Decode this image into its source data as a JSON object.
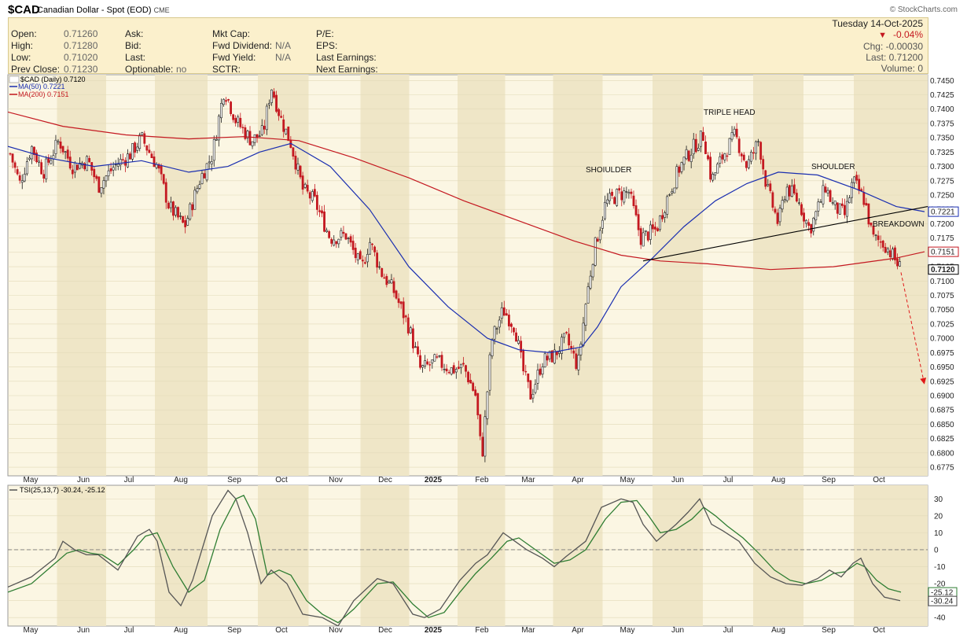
{
  "header": {
    "symbol": "$CAD",
    "name": "Canadian Dollar - Spot (EOD)",
    "exchange": "CME",
    "source": "© StockCharts.com"
  },
  "info": {
    "rows": [
      [
        {
          "label": "Open:",
          "value": "0.71260"
        },
        {
          "label": "Ask:",
          "value": ""
        },
        {
          "label": "Mkt Cap:",
          "value": ""
        },
        {
          "label": "P/E:",
          "value": ""
        }
      ],
      [
        {
          "label": "High:",
          "value": "0.71280"
        },
        {
          "label": "Bid:",
          "value": ""
        },
        {
          "label": "Fwd Dividend:",
          "value": "N/A"
        },
        {
          "label": "EPS:",
          "value": ""
        }
      ],
      [
        {
          "label": "Low:",
          "value": "0.71020"
        },
        {
          "label": "Last:",
          "value": ""
        },
        {
          "label": "Fwd Yield:",
          "value": "N/A"
        },
        {
          "label": "Last Earnings:",
          "value": ""
        }
      ],
      [
        {
          "label": "Prev Close:",
          "value": "0.71230"
        },
        {
          "label": "Optionable:",
          "value": "no"
        },
        {
          "label": "SCTR:",
          "value": ""
        },
        {
          "label": "Next Earnings:",
          "value": ""
        }
      ]
    ],
    "date": "Tuesday 14-Oct-2025",
    "pct_change": "-0.04%",
    "chg": "Chg: -0.00030",
    "last": "Last: 0.71200",
    "volume": "Volume: 0"
  },
  "chart_data": [
    {
      "type": "candlestick",
      "legend": [
        "$CAD (Daily) 0.7120",
        "MA(50) 0.7221",
        "MA(200) 0.7151"
      ],
      "ylim": [
        0.676,
        0.746
      ],
      "y_ticks": [
        "0.7450",
        "0.7425",
        "0.7400",
        "0.7375",
        "0.7350",
        "0.7325",
        "0.7300",
        "0.7275",
        "0.7250",
        "0.7225",
        "0.7200",
        "0.7175",
        "0.7150",
        "0.7125",
        "0.7100",
        "0.7075",
        "0.7050",
        "0.7025",
        "0.7000",
        "0.6975",
        "0.6950",
        "0.6925",
        "0.6900",
        "0.6875",
        "0.6850",
        "0.6825",
        "0.6800",
        "0.6775"
      ],
      "x_ticks": [
        "May",
        "Jun",
        "Jul",
        "Aug",
        "Sep",
        "Oct",
        "Nov",
        "Dec",
        "2025",
        "Feb",
        "Mar",
        "Apr",
        "May",
        "Jun",
        "Jul",
        "Aug",
        "Sep",
        "Oct"
      ],
      "last_labels": [
        {
          "value": "0.7221",
          "color": "#1a2eb0"
        },
        {
          "value": "0.7151",
          "color": "#c41820"
        },
        {
          "value": "0.7120",
          "color": "#000000"
        }
      ],
      "price_path": [
        [
          0,
          0.7265
        ],
        [
          10,
          0.7335
        ],
        [
          25,
          0.727
        ],
        [
          40,
          0.7335
        ],
        [
          55,
          0.729
        ],
        [
          75,
          0.7345
        ],
        [
          92,
          0.73
        ],
        [
          112,
          0.731
        ],
        [
          125,
          0.7265
        ],
        [
          145,
          0.73
        ],
        [
          165,
          0.732
        ],
        [
          180,
          0.735
        ],
        [
          200,
          0.73
        ],
        [
          215,
          0.723
        ],
        [
          235,
          0.7195
        ],
        [
          255,
          0.728
        ],
        [
          270,
          0.732
        ],
        [
          285,
          0.7435
        ],
        [
          300,
          0.738
        ],
        [
          320,
          0.7345
        ],
        [
          335,
          0.736
        ],
        [
          345,
          0.744
        ],
        [
          358,
          0.738
        ],
        [
          370,
          0.734
        ],
        [
          385,
          0.726
        ],
        [
          400,
          0.724
        ],
        [
          420,
          0.7175
        ],
        [
          440,
          0.718
        ],
        [
          460,
          0.712
        ],
        [
          470,
          0.717
        ],
        [
          485,
          0.7115
        ],
        [
          500,
          0.7085
        ],
        [
          520,
          0.702
        ],
        [
          535,
          0.6945
        ],
        [
          555,
          0.696
        ],
        [
          575,
          0.6945
        ],
        [
          590,
          0.695
        ],
        [
          605,
          0.69
        ],
        [
          613,
          0.679
        ],
        [
          625,
          0.6995
        ],
        [
          640,
          0.705
        ],
        [
          655,
          0.702
        ],
        [
          665,
          0.6945
        ],
        [
          675,
          0.69
        ],
        [
          690,
          0.696
        ],
        [
          705,
          0.697
        ],
        [
          720,
          0.7
        ],
        [
          735,
          0.695
        ],
        [
          745,
          0.706
        ],
        [
          755,
          0.715
        ],
        [
          770,
          0.7235
        ],
        [
          785,
          0.725
        ],
        [
          800,
          0.7255
        ],
        [
          815,
          0.7175
        ],
        [
          835,
          0.719
        ],
        [
          850,
          0.725
        ],
        [
          865,
          0.73
        ],
        [
          880,
          0.733
        ],
        [
          895,
          0.7355
        ],
        [
          905,
          0.7275
        ],
        [
          920,
          0.732
        ],
        [
          935,
          0.7355
        ],
        [
          950,
          0.73
        ],
        [
          965,
          0.7345
        ],
        [
          975,
          0.7265
        ],
        [
          990,
          0.72
        ],
        [
          1000,
          0.7265
        ],
        [
          1015,
          0.724
        ],
        [
          1030,
          0.719
        ],
        [
          1040,
          0.7225
        ],
        [
          1050,
          0.7265
        ],
        [
          1060,
          0.723
        ],
        [
          1075,
          0.7215
        ],
        [
          1085,
          0.7275
        ],
        [
          1100,
          0.724
        ],
        [
          1110,
          0.7175
        ],
        [
          1125,
          0.7165
        ],
        [
          1135,
          0.7145
        ],
        [
          1146,
          0.712
        ]
      ],
      "ma50_path": [
        [
          10,
          0.7335
        ],
        [
          60,
          0.7315
        ],
        [
          120,
          0.73
        ],
        [
          180,
          0.731
        ],
        [
          240,
          0.729
        ],
        [
          290,
          0.73
        ],
        [
          330,
          0.7325
        ],
        [
          370,
          0.734
        ],
        [
          420,
          0.73
        ],
        [
          470,
          0.7225
        ],
        [
          520,
          0.7125
        ],
        [
          570,
          0.7055
        ],
        [
          620,
          0.7
        ],
        [
          660,
          0.698
        ],
        [
          700,
          0.6975
        ],
        [
          740,
          0.6985
        ],
        [
          760,
          0.702
        ],
        [
          790,
          0.709
        ],
        [
          830,
          0.714
        ],
        [
          870,
          0.7195
        ],
        [
          910,
          0.724
        ],
        [
          950,
          0.727
        ],
        [
          990,
          0.729
        ],
        [
          1040,
          0.7285
        ],
        [
          1090,
          0.726
        ],
        [
          1140,
          0.723
        ],
        [
          1176,
          0.7221
        ]
      ],
      "ma200_path": [
        [
          10,
          0.7395
        ],
        [
          80,
          0.737
        ],
        [
          160,
          0.7355
        ],
        [
          240,
          0.7348
        ],
        [
          310,
          0.7352
        ],
        [
          380,
          0.7345
        ],
        [
          450,
          0.7315
        ],
        [
          520,
          0.728
        ],
        [
          590,
          0.724
        ],
        [
          660,
          0.7205
        ],
        [
          730,
          0.717
        ],
        [
          790,
          0.7145
        ],
        [
          840,
          0.7135
        ],
        [
          900,
          0.713
        ],
        [
          980,
          0.712
        ],
        [
          1060,
          0.7125
        ],
        [
          1140,
          0.714
        ],
        [
          1176,
          0.7151
        ]
      ],
      "annotations": [
        {
          "text": "SHOIULDER",
          "x": 745,
          "y": 0.729
        },
        {
          "text": "TRIPLE HEAD",
          "x": 895,
          "y": 0.739
        },
        {
          "text": "SHOULDER",
          "x": 1032,
          "y": 0.7295
        },
        {
          "text": "BREAKDOWN",
          "x": 1110,
          "y": 0.7195
        }
      ],
      "neckline": [
        [
          818,
          0.7135
        ],
        [
          1180,
          0.723
        ]
      ],
      "projection": [
        [
          1146,
          0.7115
        ],
        [
          1175,
          0.6925
        ]
      ]
    },
    {
      "type": "line",
      "legend": [
        "TSI(25,13,7) -30.24, -25.12"
      ],
      "ylim": [
        -45,
        38
      ],
      "y_ticks": [
        30,
        20,
        10,
        0,
        -10,
        -20,
        -30,
        -40
      ],
      "zero_line": 0,
      "last_labels": [
        {
          "value": "-25.12",
          "color": "#2e7d32"
        },
        {
          "value": "-30.24",
          "color": "#444444"
        }
      ],
      "tsi_path": [
        [
          10,
          -22
        ],
        [
          40,
          -16
        ],
        [
          70,
          -5
        ],
        [
          80,
          5
        ],
        [
          95,
          0
        ],
        [
          110,
          -3
        ],
        [
          125,
          -3
        ],
        [
          150,
          -12
        ],
        [
          175,
          8
        ],
        [
          190,
          12
        ],
        [
          200,
          5
        ],
        [
          215,
          -25
        ],
        [
          230,
          -33
        ],
        [
          245,
          -18
        ],
        [
          270,
          20
        ],
        [
          290,
          35
        ],
        [
          300,
          30
        ],
        [
          315,
          10
        ],
        [
          332,
          -20
        ],
        [
          345,
          -12
        ],
        [
          365,
          -20
        ],
        [
          385,
          -38
        ],
        [
          410,
          -40
        ],
        [
          430,
          -45
        ],
        [
          450,
          -30
        ],
        [
          480,
          -17
        ],
        [
          500,
          -20
        ],
        [
          525,
          -38
        ],
        [
          540,
          -40
        ],
        [
          560,
          -35
        ],
        [
          585,
          -18
        ],
        [
          605,
          -8
        ],
        [
          620,
          -3
        ],
        [
          640,
          10
        ],
        [
          655,
          5
        ],
        [
          670,
          0
        ],
        [
          690,
          -5
        ],
        [
          705,
          -10
        ],
        [
          720,
          -4
        ],
        [
          745,
          5
        ],
        [
          765,
          25
        ],
        [
          790,
          30
        ],
        [
          805,
          28
        ],
        [
          818,
          15
        ],
        [
          835,
          5
        ],
        [
          860,
          15
        ],
        [
          875,
          22
        ],
        [
          890,
          30
        ],
        [
          905,
          15
        ],
        [
          920,
          11
        ],
        [
          940,
          5
        ],
        [
          960,
          -8
        ],
        [
          980,
          -16
        ],
        [
          1000,
          -20
        ],
        [
          1020,
          -21
        ],
        [
          1040,
          -17
        ],
        [
          1055,
          -12
        ],
        [
          1070,
          -16
        ],
        [
          1085,
          -8
        ],
        [
          1095,
          -5
        ],
        [
          1110,
          -20
        ],
        [
          1125,
          -28
        ],
        [
          1145,
          -30
        ]
      ],
      "signal_path": [
        [
          10,
          -25
        ],
        [
          40,
          -20
        ],
        [
          70,
          -8
        ],
        [
          85,
          -2
        ],
        [
          100,
          0
        ],
        [
          115,
          -2
        ],
        [
          130,
          -3
        ],
        [
          150,
          -9
        ],
        [
          170,
          0
        ],
        [
          185,
          8
        ],
        [
          200,
          10
        ],
        [
          220,
          -10
        ],
        [
          240,
          -25
        ],
        [
          260,
          -18
        ],
        [
          280,
          12
        ],
        [
          300,
          30
        ],
        [
          310,
          32
        ],
        [
          325,
          18
        ],
        [
          340,
          -15
        ],
        [
          355,
          -12
        ],
        [
          370,
          -15
        ],
        [
          390,
          -30
        ],
        [
          410,
          -38
        ],
        [
          430,
          -43
        ],
        [
          450,
          -35
        ],
        [
          480,
          -20
        ],
        [
          500,
          -19
        ],
        [
          525,
          -32
        ],
        [
          545,
          -40
        ],
        [
          565,
          -37
        ],
        [
          585,
          -25
        ],
        [
          605,
          -14
        ],
        [
          625,
          -5
        ],
        [
          645,
          5
        ],
        [
          660,
          7
        ],
        [
          675,
          2
        ],
        [
          690,
          -3
        ],
        [
          705,
          -8
        ],
        [
          725,
          -6
        ],
        [
          745,
          0
        ],
        [
          770,
          18
        ],
        [
          790,
          28
        ],
        [
          810,
          29
        ],
        [
          825,
          20
        ],
        [
          840,
          10
        ],
        [
          860,
          12
        ],
        [
          880,
          18
        ],
        [
          895,
          25
        ],
        [
          910,
          20
        ],
        [
          925,
          14
        ],
        [
          945,
          7
        ],
        [
          965,
          -2
        ],
        [
          985,
          -12
        ],
        [
          1005,
          -18
        ],
        [
          1025,
          -20
        ],
        [
          1045,
          -18
        ],
        [
          1060,
          -14
        ],
        [
          1075,
          -13
        ],
        [
          1090,
          -8
        ],
        [
          1100,
          -10
        ],
        [
          1115,
          -18
        ],
        [
          1130,
          -23
        ],
        [
          1146,
          -25
        ]
      ]
    }
  ],
  "colors": {
    "bull": "#1a1a1a",
    "bear": "#c41820",
    "ma50": "#1a2eb0",
    "ma200": "#c41820",
    "tsi": "#555555",
    "signal": "#2e7d32",
    "panel_bg": "#fbf6e3",
    "band": "#efe6c7"
  }
}
